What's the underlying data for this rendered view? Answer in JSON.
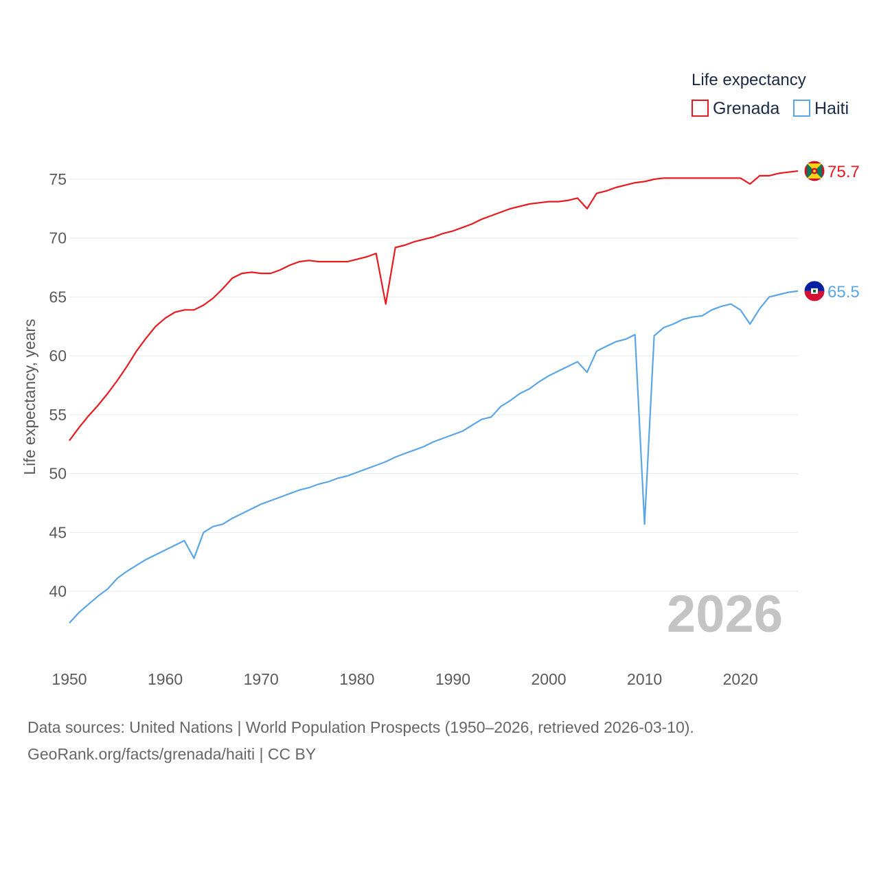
{
  "chart_data": {
    "type": "line",
    "title": "",
    "ylabel": "Life expectancy, years",
    "xlabel": "",
    "ylim": [
      37,
      77
    ],
    "xlim": [
      1950,
      2026
    ],
    "yticks": [
      40,
      45,
      50,
      55,
      60,
      65,
      70,
      75
    ],
    "xticks": [
      1950,
      1960,
      1970,
      1980,
      1990,
      2000,
      2010,
      2020
    ],
    "legend_title": "Life expectancy",
    "legend_position": "top-right",
    "year_label": "2026",
    "series": [
      {
        "name": "Grenada",
        "color": "#e8191e",
        "end_label": "75.7",
        "flag": "grenada-flag",
        "x": [
          1950,
          1951,
          1952,
          1953,
          1954,
          1955,
          1956,
          1957,
          1958,
          1959,
          1960,
          1961,
          1962,
          1963,
          1964,
          1965,
          1966,
          1967,
          1968,
          1969,
          1970,
          1971,
          1972,
          1973,
          1974,
          1975,
          1976,
          1977,
          1978,
          1979,
          1980,
          1981,
          1982,
          1983,
          1984,
          1985,
          1986,
          1987,
          1988,
          1989,
          1990,
          1991,
          1992,
          1993,
          1994,
          1995,
          1996,
          1997,
          1998,
          1999,
          2000,
          2001,
          2002,
          2003,
          2004,
          2005,
          2006,
          2007,
          2008,
          2009,
          2010,
          2011,
          2012,
          2013,
          2014,
          2015,
          2016,
          2017,
          2018,
          2019,
          2020,
          2021,
          2022,
          2023,
          2024,
          2025,
          2026
        ],
        "values": [
          52.8,
          53.9,
          54.9,
          55.8,
          56.8,
          57.9,
          59.1,
          60.4,
          61.5,
          62.5,
          63.2,
          63.7,
          63.9,
          63.9,
          64.3,
          64.9,
          65.7,
          66.6,
          67.0,
          67.1,
          67.0,
          67.0,
          67.3,
          67.7,
          68.0,
          68.1,
          68.0,
          68.0,
          68.0,
          68.0,
          68.2,
          68.4,
          68.7,
          64.4,
          69.2,
          69.4,
          69.7,
          69.9,
          70.1,
          70.4,
          70.6,
          70.9,
          71.2,
          71.6,
          71.9,
          72.2,
          72.5,
          72.7,
          72.9,
          73.0,
          73.1,
          73.1,
          73.2,
          73.4,
          72.5,
          73.8,
          74.0,
          74.3,
          74.5,
          74.7,
          74.8,
          75.0,
          75.1,
          75.1,
          75.1,
          75.1,
          75.1,
          75.1,
          75.1,
          75.1,
          75.1,
          74.6,
          75.3,
          75.3,
          75.5,
          75.6,
          75.7
        ]
      },
      {
        "name": "Haiti",
        "color": "#5aa5e6",
        "end_label": "65.5",
        "flag": "haiti-flag",
        "x": [
          1950,
          1951,
          1952,
          1953,
          1954,
          1955,
          1956,
          1957,
          1958,
          1959,
          1960,
          1961,
          1962,
          1963,
          1964,
          1965,
          1966,
          1967,
          1968,
          1969,
          1970,
          1971,
          1972,
          1973,
          1974,
          1975,
          1976,
          1977,
          1978,
          1979,
          1980,
          1981,
          1982,
          1983,
          1984,
          1985,
          1986,
          1987,
          1988,
          1989,
          1990,
          1991,
          1992,
          1993,
          1994,
          1995,
          1996,
          1997,
          1998,
          1999,
          2000,
          2001,
          2002,
          2003,
          2004,
          2005,
          2006,
          2007,
          2008,
          2009,
          2010,
          2011,
          2012,
          2013,
          2014,
          2015,
          2016,
          2017,
          2018,
          2019,
          2020,
          2021,
          2022,
          2023,
          2024,
          2025,
          2026
        ],
        "values": [
          37.3,
          38.2,
          38.9,
          39.6,
          40.2,
          41.1,
          41.7,
          42.2,
          42.7,
          43.1,
          43.5,
          43.9,
          44.3,
          42.8,
          45.0,
          45.5,
          45.7,
          46.2,
          46.6,
          47.0,
          47.4,
          47.7,
          48.0,
          48.3,
          48.6,
          48.8,
          49.1,
          49.3,
          49.6,
          49.8,
          50.1,
          50.4,
          50.7,
          51.0,
          51.4,
          51.7,
          52.0,
          52.3,
          52.7,
          53.0,
          53.3,
          53.6,
          54.1,
          54.6,
          54.8,
          55.7,
          56.2,
          56.8,
          57.2,
          57.8,
          58.3,
          58.7,
          59.1,
          59.5,
          58.6,
          60.4,
          60.8,
          61.2,
          61.4,
          61.8,
          45.7,
          61.7,
          62.4,
          62.7,
          63.1,
          63.3,
          63.4,
          63.9,
          64.2,
          64.4,
          63.9,
          62.7,
          64.0,
          65.0,
          65.2,
          65.4,
          65.5
        ]
      }
    ]
  },
  "footer": {
    "line1": "Data sources: United Nations | World Population Prospects (1950–2026, retrieved 2026-03-10).",
    "line2": "GeoRank.org/facts/grenada/haiti | CC BY"
  }
}
